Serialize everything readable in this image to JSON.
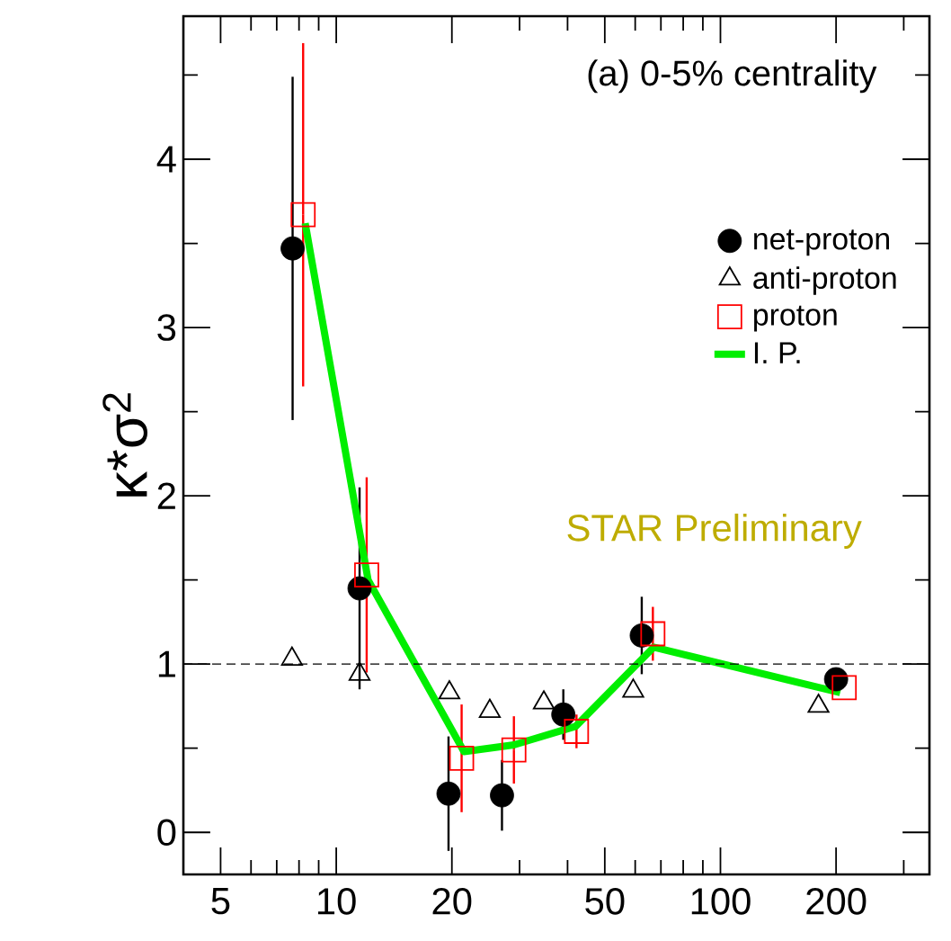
{
  "chart_data": {
    "type": "scatter",
    "ylabel": "κ*σ$^{2}$",
    "log": "x",
    "xlim": [
      4,
      350
    ],
    "ylim": [
      -0.25,
      4.85
    ],
    "xticks": [
      5,
      10,
      20,
      50,
      100,
      200,
      {
        "value": 4,
        "label": null
      },
      {
        "value": 6,
        "label": null
      },
      {
        "value": 7,
        "label": null
      },
      {
        "value": 8,
        "label": null
      },
      {
        "value": 9,
        "label": null
      },
      {
        "value": 30,
        "label": null
      },
      {
        "value": 40,
        "label": null
      },
      {
        "value": 60,
        "label": null
      },
      {
        "value": 70,
        "label": null
      },
      {
        "value": 80,
        "label": null
      },
      {
        "value": 90,
        "label": null
      },
      {
        "value": 300,
        "label": null
      }
    ],
    "yticks": [
      0,
      1,
      2,
      3,
      4,
      {
        "value": 0.5,
        "label": null
      },
      {
        "value": 1.5,
        "label": null
      },
      {
        "value": 2.5,
        "label": null
      },
      {
        "value": 3.5,
        "label": null
      },
      {
        "value": 4.5,
        "label": null
      }
    ],
    "legend": "top right",
    "series": [
      {
        "name": "net-proton",
        "color": "#000000",
        "marker": "circle",
        "x": [
          7.7,
          11.5,
          19.6,
          27,
          39,
          62.4,
          200
        ],
        "values": [
          3.47,
          1.45,
          0.23,
          0.22,
          0.7,
          1.17,
          0.91
        ],
        "errors": [
          1.02,
          0.6,
          0.34,
          0.21,
          0.15,
          0.23,
          null
        ]
      },
      {
        "name": "anti-proton",
        "color": "#000000",
        "marker": "triangle",
        "x": [
          7.67,
          11.5,
          19.7,
          25.1,
          34.7,
          59.3,
          180
        ],
        "values": [
          1.03,
          0.94,
          0.83,
          0.72,
          0.77,
          0.84,
          0.75
        ]
      },
      {
        "name": "proton",
        "color": "#ff0000",
        "marker": "square",
        "x": [
          8.2,
          12.0,
          21.2,
          29,
          42.2,
          66.7,
          210
        ],
        "values": [
          3.67,
          1.53,
          0.44,
          0.49,
          0.6,
          1.18,
          0.86
        ],
        "errors": [
          1.02,
          0.58,
          0.32,
          0.2,
          0.1,
          0.16,
          null
        ]
      },
      {
        "name": "I. P.",
        "type": "line",
        "color": "#00ee00",
        "marker": "none",
        "x": [
          8.3,
          12.1,
          21.5,
          29,
          42,
          67,
          205
        ],
        "values": [
          3.62,
          1.5,
          0.48,
          0.52,
          0.63,
          1.1,
          0.83
        ]
      }
    ],
    "ref_lines": [
      {
        "axis": "y",
        "value": 1,
        "line_style": "dashed"
      }
    ],
    "annotations": [
      "(a) 0-5% centrality",
      "STAR Preliminary"
    ]
  }
}
